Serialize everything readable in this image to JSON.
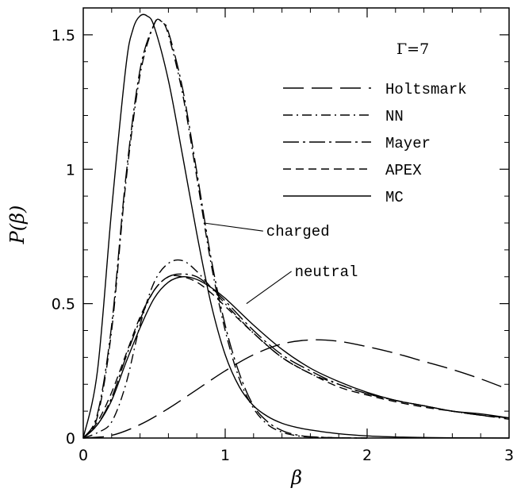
{
  "chart_data": {
    "type": "line",
    "xlabel": "β",
    "ylabel": "P(β)",
    "xlim": [
      0,
      3
    ],
    "ylim": [
      0,
      1.6
    ],
    "x_ticks": [
      0,
      1,
      2,
      3
    ],
    "y_ticks": [
      0,
      0.5,
      1,
      1.5
    ],
    "x_tick_labels": [
      "0",
      "1",
      "2",
      "3"
    ],
    "y_tick_labels": [
      "0",
      "0.5",
      "1",
      "1.5"
    ],
    "grid": false,
    "legend_position": "upper-right",
    "legend_title": "Γ=7",
    "legend": [
      {
        "name": "Holtsmark",
        "dash": "long-dash"
      },
      {
        "name": "NN",
        "dash": "dash-dot"
      },
      {
        "name": "Mayer",
        "dash": "long-dash-dot"
      },
      {
        "name": "APEX",
        "dash": "dashed"
      },
      {
        "name": "MC",
        "dash": "solid"
      }
    ],
    "annotations": [
      {
        "text": "charged",
        "x": 1.2,
        "y": 0.77,
        "arrow_to": [
          0.85,
          0.8
        ]
      },
      {
        "text": "neutral",
        "x": 1.4,
        "y": 0.62,
        "arrow_to": [
          1.15,
          0.5
        ]
      }
    ],
    "series": [
      {
        "name": "Holtsmark",
        "dash": "long-dash",
        "x": [
          0,
          0.2,
          0.4,
          0.6,
          0.8,
          1.0,
          1.2,
          1.4,
          1.6,
          1.8,
          2.0,
          2.2,
          2.4,
          2.6,
          2.8,
          3.0
        ],
        "y": [
          0,
          0.01,
          0.05,
          0.11,
          0.18,
          0.25,
          0.31,
          0.35,
          0.365,
          0.36,
          0.34,
          0.315,
          0.285,
          0.255,
          0.22,
          0.18
        ]
      },
      {
        "name": "NN",
        "dash": "dash-dot",
        "group": "charged",
        "x": [
          0,
          0.1,
          0.2,
          0.3,
          0.4,
          0.5,
          0.55,
          0.6,
          0.7,
          0.8,
          0.9,
          1.0,
          1.1,
          1.2,
          1.3,
          1.4,
          1.5,
          1.6,
          1.8,
          2.0
        ],
        "y": [
          0,
          0.08,
          0.4,
          0.95,
          1.35,
          1.54,
          1.55,
          1.5,
          1.28,
          0.97,
          0.65,
          0.4,
          0.22,
          0.11,
          0.05,
          0.022,
          0.009,
          0.004,
          0.001,
          0
        ]
      },
      {
        "name": "Mayer",
        "dash": "long-dash-dot",
        "group": "charged",
        "x": [
          0,
          0.1,
          0.2,
          0.3,
          0.4,
          0.5,
          0.55,
          0.6,
          0.7,
          0.8,
          0.9,
          1.0,
          1.1,
          1.2,
          1.3,
          1.4,
          1.5,
          1.6,
          1.8,
          2.0
        ],
        "y": [
          0,
          0.09,
          0.42,
          0.97,
          1.37,
          1.54,
          1.55,
          1.51,
          1.3,
          0.99,
          0.67,
          0.42,
          0.24,
          0.12,
          0.06,
          0.028,
          0.012,
          0.005,
          0.001,
          0
        ]
      },
      {
        "name": "MC",
        "dash": "solid",
        "group": "charged",
        "x": [
          0,
          0.1,
          0.2,
          0.3,
          0.35,
          0.4,
          0.45,
          0.5,
          0.6,
          0.7,
          0.8,
          0.9,
          1.0,
          1.1,
          1.2,
          1.3,
          1.4,
          1.5,
          1.6,
          1.8,
          2.0,
          2.2,
          2.4,
          2.6,
          3.0
        ],
        "y": [
          0,
          0.25,
          0.85,
          1.38,
          1.52,
          1.57,
          1.57,
          1.53,
          1.33,
          1.05,
          0.76,
          0.5,
          0.31,
          0.19,
          0.12,
          0.08,
          0.055,
          0.04,
          0.03,
          0.016,
          0.008,
          0.004,
          0.002,
          0.001,
          0
        ]
      },
      {
        "name": "NN",
        "dash": "dash-dot",
        "group": "neutral",
        "x": [
          0,
          0.1,
          0.2,
          0.3,
          0.4,
          0.5,
          0.6,
          0.7,
          0.8,
          0.9,
          1.0,
          1.2,
          1.4,
          1.6,
          1.8,
          2.0,
          2.2,
          2.4,
          2.6,
          2.8,
          3.0
        ],
        "y": [
          0,
          0.02,
          0.06,
          0.2,
          0.42,
          0.58,
          0.65,
          0.66,
          0.62,
          0.56,
          0.5,
          0.39,
          0.3,
          0.24,
          0.2,
          0.165,
          0.14,
          0.12,
          0.1,
          0.085,
          0.07
        ]
      },
      {
        "name": "Mayer",
        "dash": "long-dash-dot",
        "group": "neutral",
        "x": [
          0,
          0.1,
          0.2,
          0.3,
          0.4,
          0.5,
          0.6,
          0.7,
          0.8,
          0.9,
          1.0,
          1.2,
          1.4,
          1.6,
          1.8,
          2.0,
          2.2,
          2.4,
          2.6,
          2.8,
          3.0
        ],
        "y": [
          0,
          0.05,
          0.15,
          0.3,
          0.44,
          0.55,
          0.6,
          0.61,
          0.6,
          0.56,
          0.51,
          0.4,
          0.31,
          0.25,
          0.2,
          0.165,
          0.14,
          0.12,
          0.1,
          0.085,
          0.075
        ]
      },
      {
        "name": "APEX",
        "dash": "dashed",
        "group": "neutral",
        "x": [
          0,
          0.1,
          0.2,
          0.3,
          0.4,
          0.5,
          0.6,
          0.7,
          0.8,
          0.9,
          1.0,
          1.2,
          1.4,
          1.6,
          1.8,
          2.0,
          2.2,
          2.4,
          2.6,
          2.8,
          3.0
        ],
        "y": [
          0,
          0.06,
          0.17,
          0.31,
          0.45,
          0.55,
          0.6,
          0.6,
          0.58,
          0.54,
          0.49,
          0.39,
          0.3,
          0.24,
          0.19,
          0.16,
          0.135,
          0.115,
          0.1,
          0.085,
          0.075
        ]
      },
      {
        "name": "MC",
        "dash": "solid",
        "group": "neutral",
        "x": [
          0,
          0.1,
          0.2,
          0.3,
          0.4,
          0.5,
          0.6,
          0.7,
          0.8,
          0.9,
          1.0,
          1.2,
          1.4,
          1.6,
          1.8,
          2.0,
          2.2,
          2.4,
          2.6,
          2.8,
          3.0
        ],
        "y": [
          0,
          0.05,
          0.14,
          0.28,
          0.41,
          0.52,
          0.58,
          0.6,
          0.59,
          0.56,
          0.52,
          0.42,
          0.33,
          0.26,
          0.21,
          0.17,
          0.14,
          0.12,
          0.1,
          0.09,
          0.075
        ]
      }
    ]
  }
}
